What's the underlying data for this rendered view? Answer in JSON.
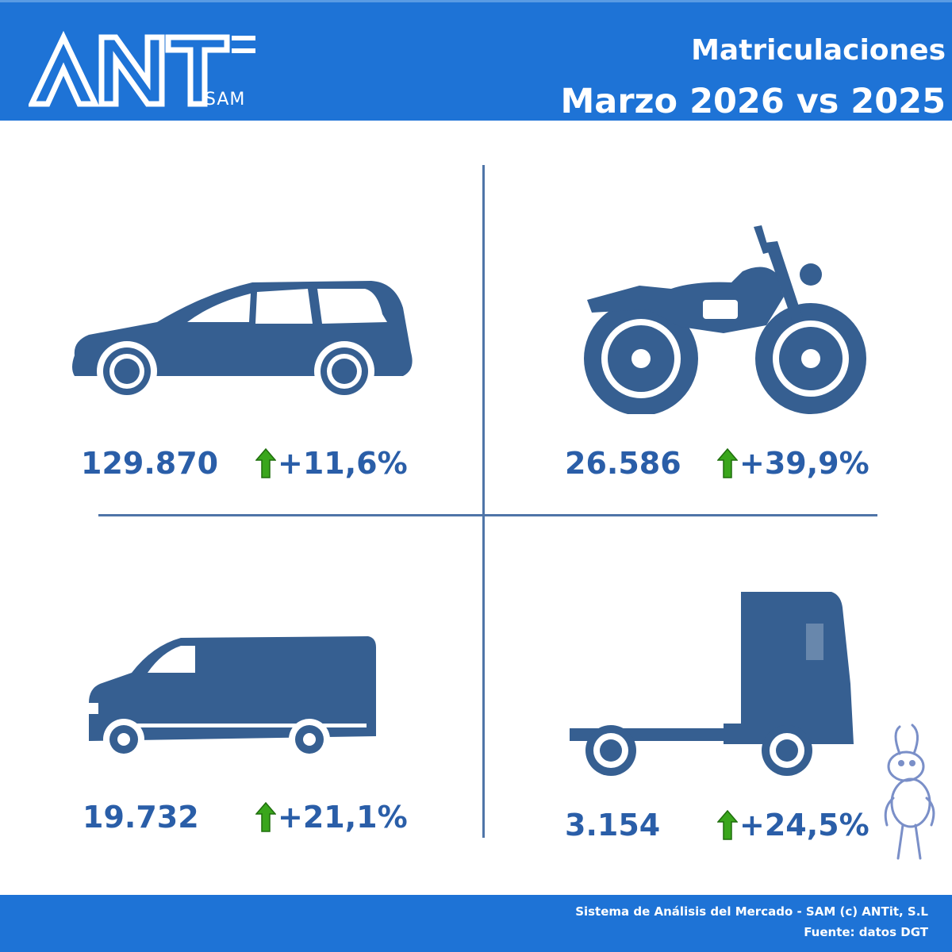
{
  "header": {
    "logo_text": "ANT",
    "logo_sub": "SAM",
    "title_line1": "Matriculaciones",
    "title_line2": "Marzo 2026 vs 2025"
  },
  "categories": [
    {
      "icon": "car-icon",
      "value": "129.870",
      "change": "+11,6%",
      "trend": "up"
    },
    {
      "icon": "motorcycle-icon",
      "value": "26.586",
      "change": "+39,9%",
      "trend": "up"
    },
    {
      "icon": "van-icon",
      "value": "19.732",
      "change": "+21,1%",
      "trend": "up"
    },
    {
      "icon": "truck-icon",
      "value": "3.154",
      "change": "+24,5%",
      "trend": "up"
    }
  ],
  "colors": {
    "header_bg": "#1e73d6",
    "icon_fill": "#365f91",
    "value_text": "#2a5ea8",
    "arrow_up": "#3aa61c"
  },
  "footer": {
    "line1": "Sistema de Análisis del Mercado - SAM (c) ANTit, S.L",
    "line2": "Fuente: datos DGT"
  }
}
